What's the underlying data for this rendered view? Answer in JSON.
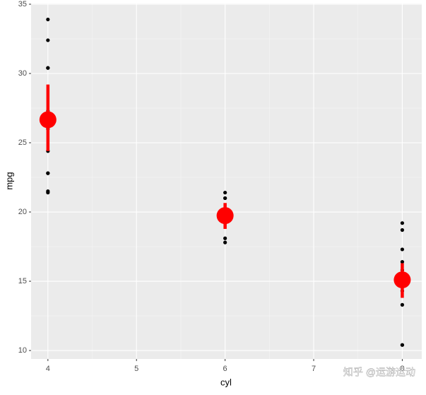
{
  "chart_data": {
    "type": "scatter",
    "x_label": "cyl",
    "y_label": "mpg",
    "xlim": [
      3.81,
      8.22
    ],
    "ylim": [
      9.39,
      35.05
    ],
    "xticks": [
      4,
      5,
      6,
      7,
      8
    ],
    "yticks": [
      10,
      15,
      20,
      25,
      30,
      35
    ],
    "grid": true,
    "series": [
      {
        "name": "observations",
        "color": "#000000",
        "x": [
          4,
          4,
          4,
          4,
          4,
          4,
          4,
          4,
          4,
          4,
          4,
          6,
          6,
          6,
          6,
          6,
          6,
          6,
          8,
          8,
          8,
          8,
          8,
          8,
          8,
          8,
          8,
          8,
          8,
          8,
          8,
          8,
          8
        ],
        "values": [
          22.8,
          24.4,
          22.8,
          32.4,
          30.4,
          33.9,
          21.5,
          27.3,
          26.0,
          30.4,
          21.4,
          21.0,
          21.0,
          21.4,
          18.1,
          19.2,
          17.8,
          19.7,
          18.7,
          14.3,
          16.4,
          17.3,
          15.2,
          10.4,
          10.4,
          14.7,
          15.5,
          15.2,
          13.3,
          15.8,
          14.7,
          15.0,
          19.2
        ]
      },
      {
        "name": "mean",
        "color": "#ff0000",
        "x": [
          4,
          6,
          8
        ],
        "values": [
          26.66,
          19.74,
          15.1
        ],
        "lower": [
          24.4,
          18.78,
          13.8
        ],
        "upper": [
          29.2,
          20.65,
          16.3
        ]
      }
    ],
    "watermark": "知乎 @运游运动"
  }
}
